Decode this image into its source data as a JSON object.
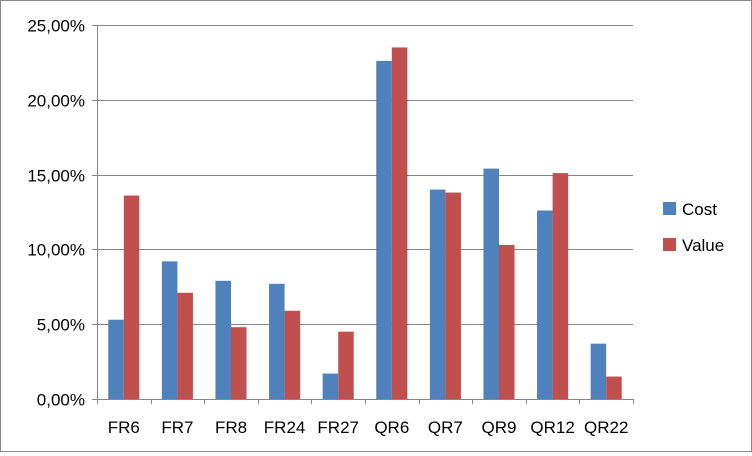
{
  "chart_data": {
    "type": "bar",
    "title": "",
    "xlabel": "",
    "ylabel": "",
    "categories": [
      "FR6",
      "FR7",
      "FR8",
      "FR24",
      "FR27",
      "QR6",
      "QR7",
      "QR9",
      "QR12",
      "QR22"
    ],
    "series": [
      {
        "name": "Cost",
        "color": "#4F81BD",
        "values": [
          5.3,
          9.2,
          7.9,
          7.7,
          1.7,
          22.6,
          14.0,
          15.4,
          12.6,
          3.7
        ]
      },
      {
        "name": "Value",
        "color": "#C0504D",
        "values": [
          13.6,
          7.1,
          4.8,
          5.9,
          4.5,
          23.5,
          13.8,
          10.3,
          15.1,
          1.5
        ]
      }
    ],
    "ylim": [
      0,
      25
    ],
    "yticks": [
      0,
      5,
      10,
      15,
      20,
      25
    ],
    "ytick_labels": [
      "0,00%",
      "5,00%",
      "10,00%",
      "15,00%",
      "20,00%",
      "25,00%"
    ],
    "grid": true,
    "legend_position": "right"
  }
}
